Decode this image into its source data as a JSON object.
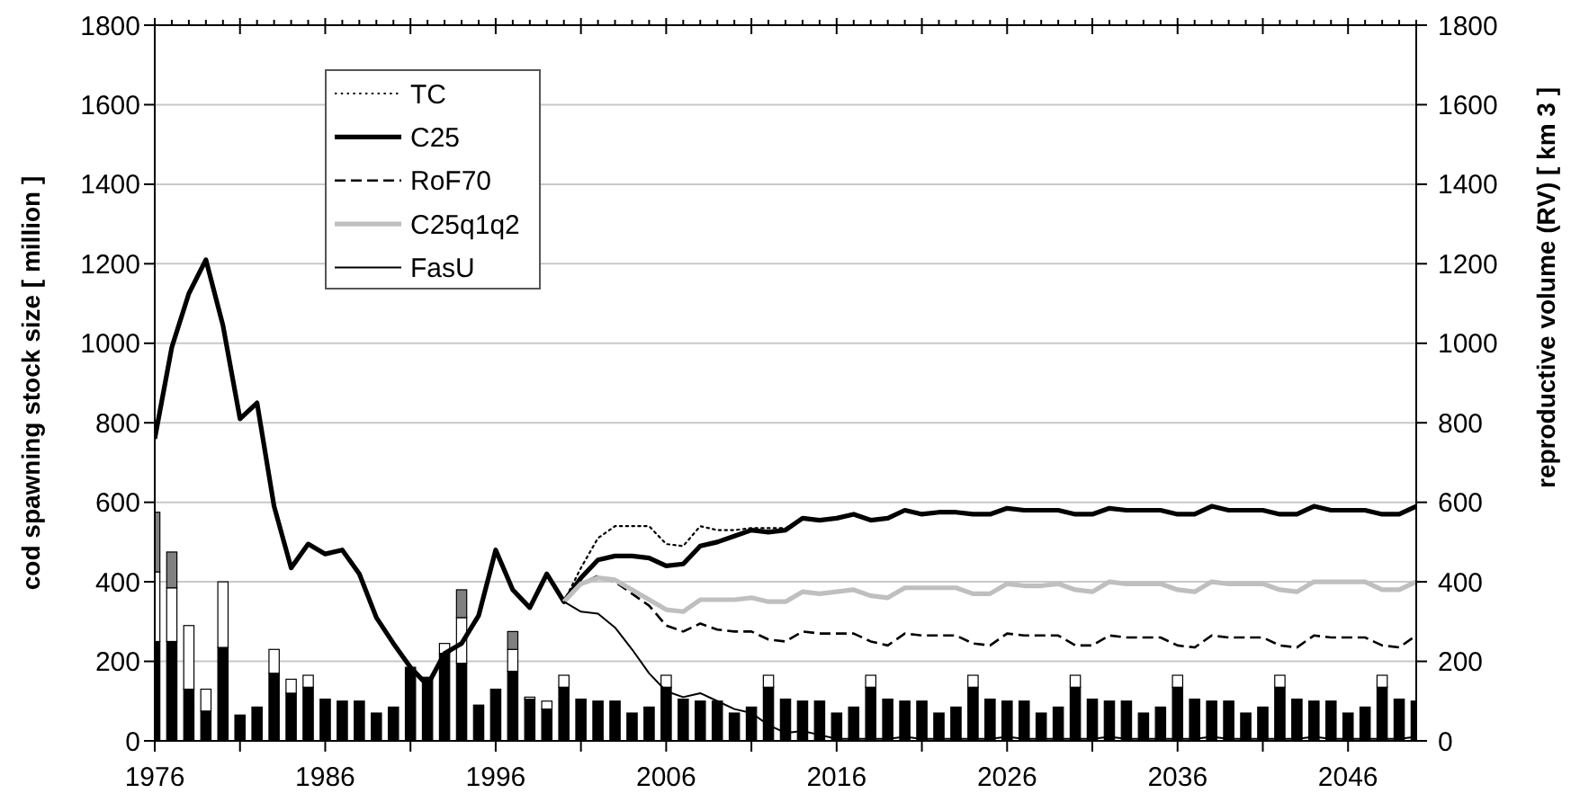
{
  "chart_data": {
    "type": "line",
    "ylabel": "cod spawning stock size [ million ]",
    "y2label": "reproductive volume (RV) [ km 3 ]",
    "x": [
      1976,
      1977,
      1978,
      1979,
      1980,
      1981,
      1982,
      1983,
      1984,
      1985,
      1986,
      1987,
      1988,
      1989,
      1990,
      1991,
      1992,
      1993,
      1994,
      1995,
      1996,
      1997,
      1998,
      1999,
      2000,
      2001,
      2002,
      2003,
      2004,
      2005,
      2006,
      2007,
      2008,
      2009,
      2010,
      2011,
      2012,
      2013,
      2014,
      2015,
      2016,
      2017,
      2018,
      2019,
      2020,
      2021,
      2022,
      2023,
      2024,
      2025,
      2026,
      2027,
      2028,
      2029,
      2030,
      2031,
      2032,
      2033,
      2034,
      2035,
      2036,
      2037,
      2038,
      2039,
      2040,
      2041,
      2042,
      2043,
      2044,
      2045,
      2046,
      2047,
      2048,
      2049,
      2050
    ],
    "xlim": [
      1976,
      2050
    ],
    "xticks": [
      1976,
      {
        "value": 1981,
        "label": null
      },
      1986,
      {
        "value": 1991,
        "label": null
      },
      1996,
      {
        "value": 2001,
        "label": null
      },
      2006,
      {
        "value": 2011,
        "label": null
      },
      2016,
      {
        "value": 2021,
        "label": null
      },
      2026,
      {
        "value": 2031,
        "label": null
      },
      2036,
      {
        "value": 2041,
        "label": null
      },
      2046
    ],
    "ylim": [
      0,
      1800
    ],
    "yticks": [
      0,
      200,
      400,
      600,
      800,
      1000,
      1200,
      1400,
      1600,
      1800
    ],
    "y2lim": [
      0,
      1800
    ],
    "y2ticks": [
      0,
      200,
      400,
      600,
      800,
      1000,
      1200,
      1400,
      1600,
      1800
    ],
    "grid": "y",
    "legend": "top left",
    "stacked": true,
    "series": [
      {
        "type": "bar",
        "color": "#000000",
        "values": [
          250,
          250,
          130,
          75,
          235,
          65,
          85,
          170,
          120,
          135,
          105,
          100,
          100,
          70,
          85,
          185,
          160,
          220,
          195,
          90,
          130,
          175,
          105,
          80,
          135,
          105,
          100,
          100,
          70,
          85,
          135,
          105,
          100,
          100,
          70,
          85,
          135,
          105,
          100,
          100,
          70,
          85,
          135,
          105,
          100,
          100,
          70,
          85,
          135,
          105,
          100,
          100,
          70,
          85,
          135,
          105,
          100,
          100,
          70,
          85,
          135,
          105,
          100,
          100,
          70,
          85,
          135,
          105,
          100,
          100,
          70,
          85,
          135,
          105,
          100
        ]
      },
      {
        "type": "bar",
        "color": "#ffffff",
        "values": [
          175,
          135,
          160,
          55,
          165,
          null,
          null,
          60,
          35,
          30,
          null,
          null,
          null,
          null,
          null,
          null,
          null,
          25,
          115,
          null,
          null,
          55,
          5,
          20,
          30,
          null,
          null,
          null,
          null,
          null,
          30,
          null,
          null,
          null,
          null,
          null,
          30,
          null,
          null,
          null,
          null,
          null,
          30,
          null,
          null,
          null,
          null,
          null,
          30,
          null,
          null,
          null,
          null,
          null,
          30,
          null,
          null,
          null,
          null,
          null,
          30,
          null,
          null,
          null,
          null,
          null,
          30,
          null,
          null,
          null,
          null,
          null,
          30,
          null,
          null
        ]
      },
      {
        "type": "bar",
        "color": "#808080",
        "values": [
          150,
          90,
          null,
          null,
          null,
          null,
          null,
          null,
          null,
          null,
          null,
          null,
          null,
          null,
          null,
          null,
          null,
          null,
          70,
          null,
          null,
          45,
          null,
          null,
          null,
          null,
          null,
          null,
          null,
          null,
          null,
          null,
          null,
          null,
          null,
          null,
          null,
          null,
          null,
          null,
          null,
          null,
          null,
          null,
          null,
          null,
          null,
          null,
          null,
          null,
          null,
          null,
          null,
          null,
          null,
          null,
          null,
          null,
          null,
          null,
          null,
          null,
          null,
          null,
          null,
          null,
          null,
          null,
          null,
          null,
          null,
          null,
          null,
          null,
          null
        ]
      },
      {
        "name": "TC",
        "color": "#000000",
        "line_style": "dotted",
        "values": [
          null,
          null,
          null,
          null,
          null,
          null,
          null,
          null,
          null,
          null,
          null,
          null,
          null,
          null,
          null,
          null,
          null,
          null,
          null,
          null,
          null,
          null,
          null,
          null,
          350,
          435,
          510,
          540,
          540,
          540,
          495,
          490,
          540,
          530,
          530,
          535,
          535,
          535,
          560,
          null,
          null,
          null,
          null,
          null,
          null,
          null,
          null,
          null,
          null,
          null,
          null,
          null,
          null,
          null,
          null,
          null,
          null,
          null,
          null,
          null,
          null,
          null,
          null,
          null,
          null,
          null,
          null,
          null,
          null,
          null,
          null,
          null,
          null,
          null,
          null
        ]
      },
      {
        "name": "C25",
        "color": "#000000",
        "line_style": "solid",
        "values": [
          760,
          990,
          1125,
          1210,
          1045,
          810,
          850,
          590,
          435,
          495,
          470,
          480,
          420,
          310,
          245,
          185,
          140,
          220,
          245,
          315,
          480,
          380,
          335,
          420,
          350,
          410,
          455,
          465,
          465,
          460,
          440,
          445,
          490,
          500,
          515,
          530,
          525,
          530,
          560,
          555,
          560,
          570,
          555,
          560,
          580,
          570,
          575,
          575,
          570,
          570,
          585,
          580,
          580,
          580,
          570,
          570,
          585,
          580,
          580,
          580,
          570,
          570,
          590,
          580,
          580,
          580,
          570,
          570,
          590,
          580,
          580,
          580,
          570,
          570,
          590
        ]
      },
      {
        "name": "RoF70",
        "color": "#000000",
        "line_style": "dashed",
        "values": [
          null,
          null,
          null,
          null,
          null,
          null,
          null,
          null,
          null,
          null,
          null,
          null,
          null,
          null,
          null,
          null,
          null,
          null,
          null,
          null,
          null,
          null,
          null,
          null,
          350,
          395,
          415,
          400,
          370,
          340,
          290,
          275,
          295,
          280,
          275,
          275,
          255,
          250,
          275,
          270,
          270,
          270,
          250,
          240,
          270,
          265,
          265,
          265,
          245,
          240,
          270,
          265,
          265,
          265,
          240,
          240,
          265,
          260,
          260,
          260,
          240,
          235,
          265,
          260,
          260,
          260,
          240,
          235,
          265,
          260,
          260,
          260,
          240,
          235,
          265
        ]
      },
      {
        "name": "C25q1q2",
        "color": "#bfbfbf",
        "line_style": "solid",
        "values": [
          null,
          null,
          null,
          null,
          null,
          null,
          null,
          null,
          null,
          null,
          null,
          null,
          null,
          null,
          null,
          null,
          null,
          null,
          null,
          null,
          null,
          null,
          null,
          null,
          350,
          395,
          410,
          405,
          380,
          355,
          330,
          325,
          355,
          355,
          355,
          360,
          350,
          350,
          375,
          370,
          375,
          380,
          365,
          360,
          385,
          385,
          385,
          385,
          370,
          370,
          395,
          390,
          390,
          395,
          380,
          375,
          400,
          395,
          395,
          395,
          380,
          375,
          400,
          395,
          395,
          395,
          380,
          375,
          400,
          400,
          400,
          400,
          380,
          380,
          400
        ]
      },
      {
        "name": "FasU",
        "color": "#000000",
        "line_style": "solid",
        "values": [
          null,
          null,
          null,
          null,
          null,
          null,
          null,
          null,
          null,
          null,
          null,
          null,
          null,
          null,
          null,
          null,
          null,
          null,
          null,
          null,
          null,
          null,
          null,
          null,
          350,
          325,
          320,
          285,
          230,
          170,
          125,
          110,
          120,
          100,
          80,
          70,
          40,
          20,
          25,
          15,
          5,
          5,
          5,
          5,
          10,
          5,
          5,
          5,
          5,
          5,
          10,
          5,
          5,
          5,
          5,
          5,
          10,
          5,
          5,
          5,
          5,
          5,
          10,
          5,
          5,
          5,
          5,
          5,
          10,
          5,
          5,
          5,
          5,
          5,
          10
        ]
      }
    ]
  }
}
